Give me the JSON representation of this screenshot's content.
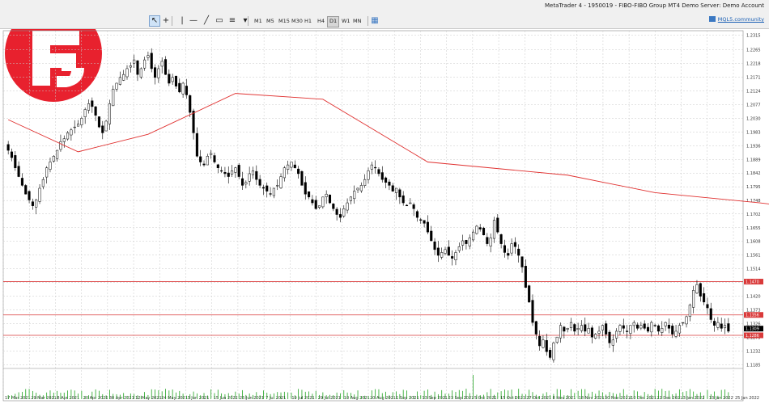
{
  "window": {
    "title": "MetaTrader 4 - 1950019 - FIBO-FIBO Group MT4 Demo Server: Demo Account"
  },
  "toolbar": {
    "tools": [
      {
        "name": "cursor-tool-icon",
        "glyph": "↖",
        "active": true
      },
      {
        "name": "crosshair-tool-icon",
        "glyph": "+",
        "active": false
      },
      {
        "name": "vertical-line-tool-icon",
        "glyph": "|",
        "active": false
      },
      {
        "name": "horizontal-line-tool-icon",
        "glyph": "—",
        "active": false
      },
      {
        "name": "trendline-tool-icon",
        "glyph": "╱",
        "active": false
      },
      {
        "name": "text-label-tool-icon",
        "glyph": "▭",
        "active": false
      },
      {
        "name": "fibonacci-tool-icon",
        "glyph": "≡",
        "active": false
      },
      {
        "name": "shapes-tool-icon",
        "glyph": "▾",
        "active": false
      }
    ],
    "timeframes": [
      "M1",
      "M5",
      "M15",
      "M30",
      "H1",
      "H4",
      "D1",
      "W1",
      "MN"
    ],
    "active_timeframe": "D1",
    "community_label": "MQL5.community"
  },
  "logo": {
    "brand_color": "#e8212e"
  },
  "colors": {
    "background": "#ffffff",
    "candle": "#000000",
    "moving_average": "#e0302f",
    "level_line": "#d93a3a",
    "volume": "#22a322",
    "grid": "#c8c8c8"
  },
  "chart_data": {
    "type": "candlestick",
    "symbol_timeframe": "D1",
    "ylim": [
      1.1178,
      1.233
    ],
    "price_ticks": [
      "1.2315",
      "1.2265",
      "1.2218",
      "1.2171",
      "1.2124",
      "1.2077",
      "1.2030",
      "1.1983",
      "1.1936",
      "1.1889",
      "1.1842",
      "1.1795",
      "1.1748",
      "1.1702",
      "1.1655",
      "1.1608",
      "1.1561",
      "1.1514",
      "1.1467",
      "1.1420",
      "1.1373",
      "1.1326",
      "1.1279",
      "1.1232",
      "1.1185"
    ],
    "date_ticks": [
      "17 Mar 2021",
      "29 Mar 2021",
      "8 Apr 2021",
      "20 Apr 2021",
      "30 Apr 2021",
      "12 May 2021",
      "24 May 2021",
      "3 Jun 2021",
      "15 Jun 2021",
      "25 Jun 2021",
      "7 Jul 2021",
      "19 Jul 2021",
      "29 Jul 2021",
      "10 Aug 2021",
      "20 Aug 2021",
      "1 Sep 2021",
      "13 Sep 2021",
      "23 Sep 2021",
      "5 Oct 2021",
      "15 Oct 2021",
      "27 Oct 2021",
      "8 Nov 2021",
      "18 Nov 2021",
      "30 Nov 2021",
      "10 Dec 2021",
      "22 Dec 2021",
      "3 Jan 2022",
      "13 Jan 2022",
      "25 Jan 2022"
    ],
    "close_path": [
      1.192,
      1.1895,
      1.186,
      1.183,
      1.18,
      1.177,
      1.175,
      1.173,
      1.175,
      1.179,
      1.182,
      1.186,
      1.188,
      1.19,
      1.192,
      1.195,
      1.196,
      1.198,
      1.199,
      1.2,
      1.201,
      1.203,
      1.206,
      1.208,
      1.207,
      1.204,
      1.2,
      1.198,
      1.202,
      1.208,
      1.213,
      1.215,
      1.217,
      1.218,
      1.22,
      1.221,
      1.223,
      1.218,
      1.22,
      1.223,
      1.2245,
      1.22,
      1.217,
      1.22,
      1.2225,
      1.218,
      1.215,
      1.217,
      1.214,
      1.212,
      1.215,
      1.211,
      1.205,
      1.198,
      1.19,
      1.188,
      1.187,
      1.19,
      1.191,
      1.188,
      1.186,
      1.185,
      1.184,
      1.183,
      1.185,
      1.186,
      1.183,
      1.18,
      1.181,
      1.184,
      1.185,
      1.182,
      1.18,
      1.179,
      1.178,
      1.177,
      1.179,
      1.18,
      1.183,
      1.186,
      1.187,
      1.188,
      1.186,
      1.184,
      1.18,
      1.177,
      1.176,
      1.174,
      1.172,
      1.173,
      1.176,
      1.177,
      1.174,
      1.172,
      1.17,
      1.169,
      1.172,
      1.174,
      1.176,
      1.178,
      1.179,
      1.18,
      1.182,
      1.185,
      1.187,
      1.186,
      1.184,
      1.182,
      1.181,
      1.18,
      1.178,
      1.179,
      1.176,
      1.174,
      1.173,
      1.174,
      1.172,
      1.169,
      1.168,
      1.167,
      1.164,
      1.161,
      1.158,
      1.156,
      1.157,
      1.158,
      1.156,
      1.155,
      1.157,
      1.159,
      1.161,
      1.16,
      1.162,
      1.164,
      1.166,
      1.165,
      1.163,
      1.16,
      1.162,
      1.168,
      1.164,
      1.16,
      1.157,
      1.156,
      1.16,
      1.159,
      1.156,
      1.152,
      1.145,
      1.14,
      1.133,
      1.129,
      1.125,
      1.127,
      1.123,
      1.121,
      1.126,
      1.128,
      1.132,
      1.13,
      1.131,
      1.133,
      1.13,
      1.131,
      1.132,
      1.13,
      1.131,
      1.128,
      1.129,
      1.13,
      1.132,
      1.129,
      1.126,
      1.127,
      1.13,
      1.132,
      1.131,
      1.13,
      1.132,
      1.133,
      1.131,
      1.132,
      1.131,
      1.13,
      1.133,
      1.132,
      1.13,
      1.131,
      1.133,
      1.131,
      1.129,
      1.13,
      1.132,
      1.133,
      1.135,
      1.139,
      1.144,
      1.146,
      1.142,
      1.14,
      1.138,
      1.134,
      1.132,
      1.133,
      1.131,
      1.132,
      1.13
    ],
    "moving_average": [
      [
        0,
        1.2025
      ],
      [
        20,
        1.1915
      ],
      [
        40,
        1.1975
      ],
      [
        65,
        1.2115
      ],
      [
        90,
        1.2095
      ],
      [
        120,
        1.188
      ],
      [
        160,
        1.1835
      ],
      [
        185,
        1.1775
      ],
      [
        215,
        1.174
      ],
      [
        245,
        1.1695
      ],
      [
        275,
        1.165
      ],
      [
        310,
        1.1555
      ],
      [
        340,
        1.144
      ],
      [
        370,
        1.137
      ],
      [
        390,
        1.1345
      ],
      [
        398,
        1.134
      ]
    ],
    "horizontal_levels": [
      {
        "price": 1.147,
        "label": "1.1470"
      },
      {
        "price": 1.1356,
        "label": "1.1356"
      },
      {
        "price": 1.1286,
        "label": "1.1286"
      }
    ],
    "current_price": {
      "price": 1.1309,
      "label": "1.1309"
    },
    "volume_spike_index": 133
  }
}
